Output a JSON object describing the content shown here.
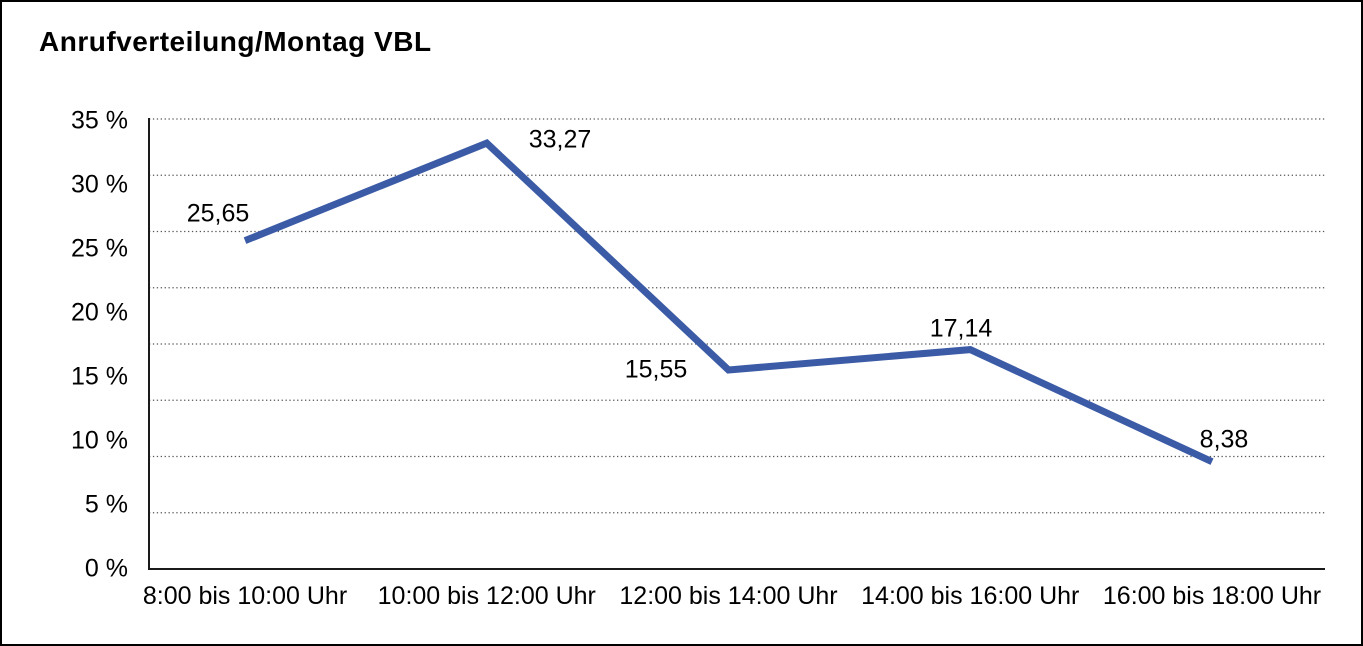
{
  "colors": {
    "line": "#3C5BA6",
    "grid": "#555555",
    "axis": "#1a1a1a",
    "text": "#000000",
    "background": "#ffffff",
    "border": "#000000"
  },
  "chart_data": {
    "type": "line",
    "title": "Anrufverteilung/Montag VBL",
    "categories": [
      "8:00 bis 10:00 Uhr",
      "10:00 bis 12:00 Uhr",
      "12:00 bis 14:00 Uhr",
      "14:00 bis 16:00 Uhr",
      "16:00 bis 18:00 Uhr"
    ],
    "values": [
      25.65,
      33.27,
      15.55,
      17.14,
      8.38
    ],
    "value_labels": [
      "25,65",
      "33,27",
      "15,55",
      "17,14",
      "8,38"
    ],
    "ytick_values": [
      0,
      5,
      10,
      15,
      20,
      25,
      30,
      35
    ],
    "ytick_labels": [
      "0 %",
      "5 %",
      "10 %",
      "15 %",
      "20 %",
      "25 %",
      "30 %",
      "35 %"
    ],
    "ylim": [
      0,
      35
    ],
    "xlabel": "",
    "ylabel": "",
    "grid": "horizontal-dotted",
    "legend": "none"
  }
}
